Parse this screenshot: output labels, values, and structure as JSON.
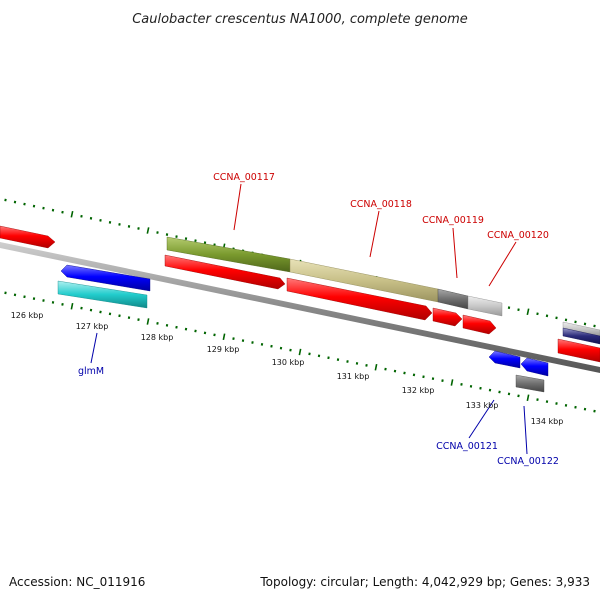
{
  "title": "Caulobacter crescentus NA1000, complete genome",
  "footer": {
    "accession": "Accession: NC_011916",
    "summary": "Topology: circular; Length: 4,042,929 bp; Genes: 3,933"
  },
  "colors": {
    "red": "#ff0000",
    "blue": "#0000ff",
    "cyan": "#22cccc",
    "olive": "#7a9a2e",
    "khaki": "#c8c088",
    "gray": "#707070",
    "light_gray": "#c8c8c8",
    "tick": "#006400",
    "label_red": "#cc0000",
    "label_blue": "#0000aa"
  },
  "scale_labels": [
    "126 kbp",
    "127 kbp",
    "128 kbp",
    "129 kbp",
    "130 kbp",
    "131 kbp",
    "132 kbp",
    "133 kbp",
    "134 kbp"
  ],
  "gene_labels": [
    {
      "text": "CCNA_00117",
      "color": "#cc0000"
    },
    {
      "text": "CCNA_00118",
      "color": "#cc0000"
    },
    {
      "text": "CCNA_00119",
      "color": "#cc0000"
    },
    {
      "text": "CCNA_00120",
      "color": "#cc0000"
    },
    {
      "text": "glmM",
      "color": "#0000aa"
    },
    {
      "text": "CCNA_00121",
      "color": "#0000aa"
    },
    {
      "text": "CCNA_00122",
      "color": "#0000aa"
    }
  ]
}
